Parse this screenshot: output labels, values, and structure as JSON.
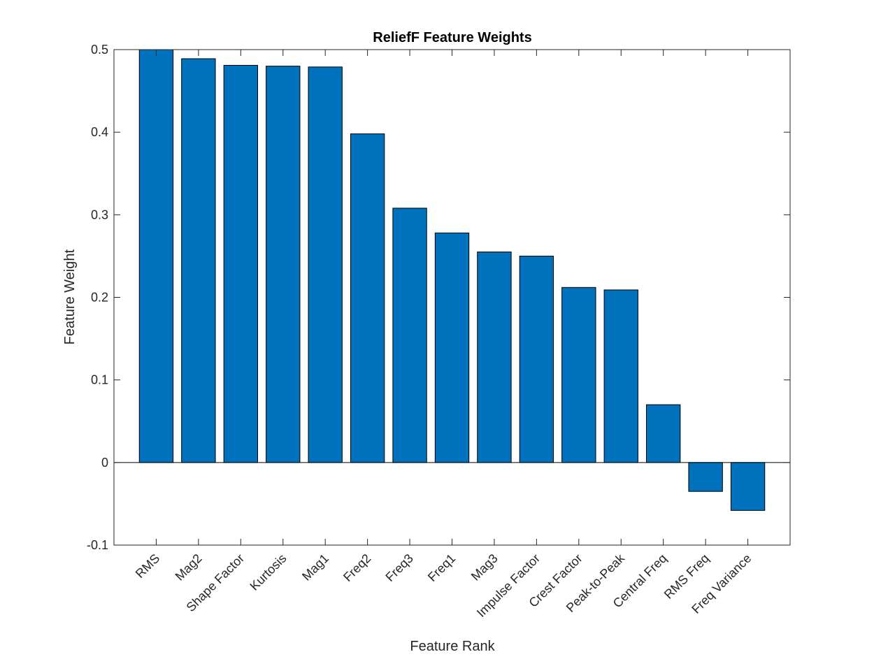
{
  "chart_data": {
    "type": "bar",
    "title": "ReliefF Feature Weights",
    "xlabel": "Feature Rank",
    "ylabel": "Feature Weight",
    "categories": [
      "RMS",
      "Mag2",
      "Shape Factor",
      "Kurtosis",
      "Mag1",
      "Freq2",
      "Freq3",
      "Freq1",
      "Mag3",
      "Impulse Factor",
      "Crest Factor",
      "Peak-to-Peak",
      "Central Freq",
      "RMS Freq",
      "Freq Variance"
    ],
    "values": [
      0.5,
      0.489,
      0.481,
      0.48,
      0.479,
      0.398,
      0.308,
      0.278,
      0.255,
      0.25,
      0.212,
      0.209,
      0.07,
      -0.035,
      -0.058
    ],
    "ylim": [
      -0.1,
      0.5
    ],
    "yticks": [
      "-0.1",
      "0",
      "0.1",
      "0.2",
      "0.3",
      "0.4",
      "0.5"
    ],
    "ytick_values": [
      -0.1,
      0,
      0.1,
      0.2,
      0.3,
      0.4,
      0.5
    ],
    "grid": false,
    "bar_color": "#0072BD",
    "bar_edge_color": "#000000"
  }
}
